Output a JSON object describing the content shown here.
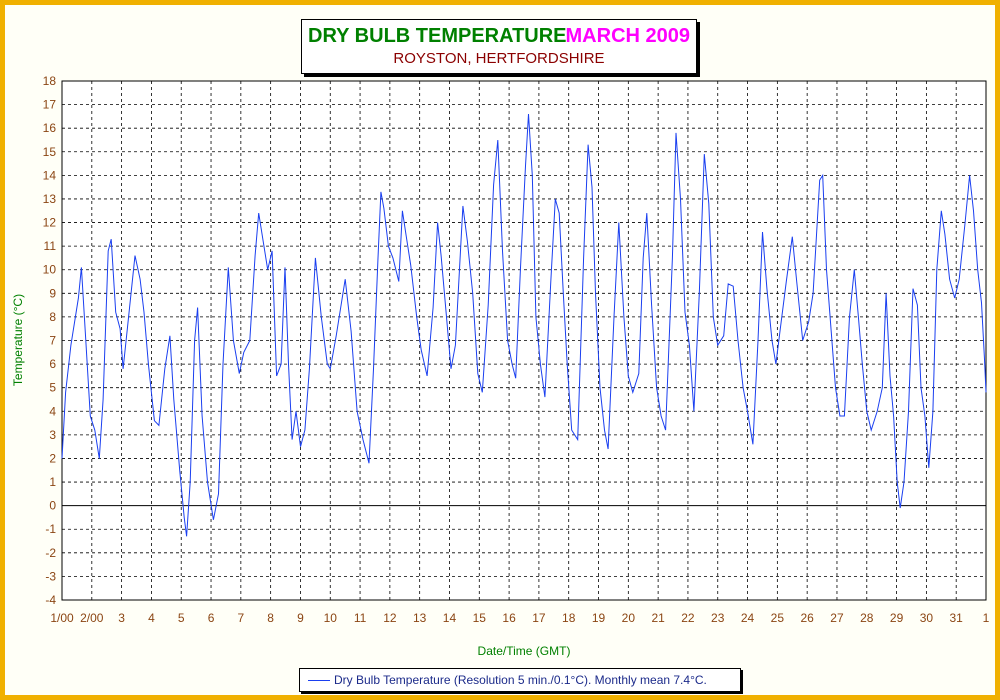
{
  "chart_data": {
    "type": "line",
    "title": "DRY BULB TEMPERATURE",
    "title_date": "MARCH 2009",
    "subtitle": "ROYSTON, HERTFORDSHIRE",
    "xlabel": "Date/Time (GMT)",
    "ylabel": "Temperature (°C)",
    "ylim": [
      -4,
      18
    ],
    "xlim": [
      1,
      32
    ],
    "yticks": [
      -4,
      -3,
      -2,
      -1,
      0,
      1,
      2,
      3,
      4,
      5,
      6,
      7,
      8,
      9,
      10,
      11,
      12,
      13,
      14,
      15,
      16,
      17,
      18
    ],
    "x_tick_labels": [
      "1/00",
      "2/00",
      "3",
      "4",
      "5",
      "6",
      "7",
      "8",
      "9",
      "10",
      "11",
      "12",
      "13",
      "14",
      "15",
      "16",
      "17",
      "18",
      "19",
      "20",
      "21",
      "22",
      "23",
      "24",
      "25",
      "26",
      "27",
      "28",
      "29",
      "30",
      "31",
      "1"
    ],
    "grid": true,
    "colors": {
      "line": "#1a3ff0",
      "axis_text": "#8b4513",
      "label_text": "#008000",
      "frame": "#f0b000"
    },
    "legend": "Dry Bulb Temperature (Resolution 5 min./0.1°C). Monthly mean 7.4°C.",
    "legend_position": "bottom-center",
    "series": [
      {
        "name": "Dry Bulb Temperature (Resolution 5 min./0.1°C). Monthly mean 7.4°C.",
        "points": [
          [
            1.0,
            2.0
          ],
          [
            1.12,
            4.8
          ],
          [
            1.3,
            6.8
          ],
          [
            1.55,
            8.8
          ],
          [
            1.65,
            10.1
          ],
          [
            1.8,
            7.0
          ],
          [
            1.95,
            3.8
          ],
          [
            2.1,
            3.2
          ],
          [
            2.25,
            2.0
          ],
          [
            2.38,
            4.5
          ],
          [
            2.55,
            10.8
          ],
          [
            2.65,
            11.3
          ],
          [
            2.8,
            8.2
          ],
          [
            2.95,
            7.5
          ],
          [
            3.05,
            5.8
          ],
          [
            3.2,
            7.6
          ],
          [
            3.45,
            10.6
          ],
          [
            3.62,
            9.6
          ],
          [
            3.75,
            8.2
          ],
          [
            3.9,
            6.0
          ],
          [
            4.1,
            3.6
          ],
          [
            4.25,
            3.4
          ],
          [
            4.45,
            5.8
          ],
          [
            4.62,
            7.2
          ],
          [
            4.75,
            4.5
          ],
          [
            4.95,
            1.5
          ],
          [
            5.1,
            -0.5
          ],
          [
            5.18,
            -1.3
          ],
          [
            5.3,
            1.0
          ],
          [
            5.45,
            7.0
          ],
          [
            5.55,
            8.4
          ],
          [
            5.7,
            3.8
          ],
          [
            5.88,
            1.0
          ],
          [
            6.08,
            -0.6
          ],
          [
            6.25,
            0.5
          ],
          [
            6.4,
            6.0
          ],
          [
            6.58,
            10.1
          ],
          [
            6.75,
            7.0
          ],
          [
            6.95,
            5.6
          ],
          [
            7.1,
            6.5
          ],
          [
            7.3,
            7.0
          ],
          [
            7.48,
            10.6
          ],
          [
            7.6,
            12.4
          ],
          [
            7.75,
            11.2
          ],
          [
            7.9,
            10.0
          ],
          [
            8.05,
            10.8
          ],
          [
            8.2,
            5.5
          ],
          [
            8.35,
            6.0
          ],
          [
            8.48,
            10.1
          ],
          [
            8.6,
            6.0
          ],
          [
            8.72,
            2.8
          ],
          [
            8.85,
            4.0
          ],
          [
            9.0,
            2.5
          ],
          [
            9.15,
            3.2
          ],
          [
            9.3,
            5.8
          ],
          [
            9.5,
            10.5
          ],
          [
            9.7,
            8.0
          ],
          [
            9.9,
            6.0
          ],
          [
            10.0,
            5.8
          ],
          [
            10.2,
            7.2
          ],
          [
            10.5,
            9.6
          ],
          [
            10.7,
            7.4
          ],
          [
            10.9,
            4.0
          ],
          [
            11.1,
            2.8
          ],
          [
            11.3,
            1.8
          ],
          [
            11.45,
            5.8
          ],
          [
            11.6,
            10.4
          ],
          [
            11.7,
            13.3
          ],
          [
            11.8,
            12.6
          ],
          [
            11.95,
            11.0
          ],
          [
            12.1,
            10.5
          ],
          [
            12.3,
            9.5
          ],
          [
            12.42,
            12.5
          ],
          [
            12.55,
            11.4
          ],
          [
            12.7,
            10.2
          ],
          [
            12.9,
            8.0
          ],
          [
            13.05,
            6.6
          ],
          [
            13.25,
            5.5
          ],
          [
            13.45,
            8.4
          ],
          [
            13.6,
            12.0
          ],
          [
            13.72,
            10.6
          ],
          [
            13.9,
            8.0
          ],
          [
            14.05,
            5.8
          ],
          [
            14.2,
            6.8
          ],
          [
            14.45,
            12.7
          ],
          [
            14.6,
            11.2
          ],
          [
            14.78,
            9.0
          ],
          [
            14.95,
            5.6
          ],
          [
            15.1,
            4.8
          ],
          [
            15.3,
            8.5
          ],
          [
            15.48,
            13.6
          ],
          [
            15.62,
            15.5
          ],
          [
            15.78,
            10.8
          ],
          [
            15.95,
            7.0
          ],
          [
            16.1,
            6.0
          ],
          [
            16.22,
            5.4
          ],
          [
            16.38,
            10.0
          ],
          [
            16.55,
            14.4
          ],
          [
            16.65,
            16.6
          ],
          [
            16.78,
            14.0
          ],
          [
            16.9,
            8.0
          ],
          [
            17.05,
            6.0
          ],
          [
            17.2,
            4.6
          ],
          [
            17.4,
            9.5
          ],
          [
            17.55,
            13.0
          ],
          [
            17.68,
            12.4
          ],
          [
            17.82,
            9.0
          ],
          [
            17.95,
            6.0
          ],
          [
            18.1,
            3.2
          ],
          [
            18.3,
            2.8
          ],
          [
            18.5,
            10.5
          ],
          [
            18.65,
            15.3
          ],
          [
            18.78,
            13.5
          ],
          [
            18.9,
            9.0
          ],
          [
            19.05,
            5.0
          ],
          [
            19.2,
            3.2
          ],
          [
            19.32,
            2.4
          ],
          [
            19.52,
            8.0
          ],
          [
            19.68,
            12.0
          ],
          [
            19.85,
            8.0
          ],
          [
            20.0,
            5.5
          ],
          [
            20.15,
            4.8
          ],
          [
            20.35,
            5.6
          ],
          [
            20.5,
            10.5
          ],
          [
            20.62,
            12.4
          ],
          [
            20.78,
            8.5
          ],
          [
            20.95,
            5.0
          ],
          [
            21.1,
            3.8
          ],
          [
            21.25,
            3.2
          ],
          [
            21.48,
            10.5
          ],
          [
            21.6,
            15.8
          ],
          [
            21.75,
            13.0
          ],
          [
            21.9,
            8.2
          ],
          [
            22.05,
            6.8
          ],
          [
            22.2,
            4.0
          ],
          [
            22.38,
            9.0
          ],
          [
            22.55,
            14.9
          ],
          [
            22.7,
            12.8
          ],
          [
            22.85,
            8.0
          ],
          [
            23.0,
            6.8
          ],
          [
            23.2,
            7.2
          ],
          [
            23.35,
            9.4
          ],
          [
            23.52,
            9.3
          ],
          [
            23.68,
            7.0
          ],
          [
            23.85,
            5.0
          ],
          [
            24.0,
            4.0
          ],
          [
            24.18,
            2.6
          ],
          [
            24.35,
            7.0
          ],
          [
            24.5,
            11.6
          ],
          [
            24.65,
            9.2
          ],
          [
            24.82,
            7.0
          ],
          [
            24.95,
            6.0
          ],
          [
            25.1,
            7.5
          ],
          [
            25.3,
            9.5
          ],
          [
            25.5,
            11.4
          ],
          [
            25.65,
            9.5
          ],
          [
            25.85,
            7.0
          ],
          [
            26.05,
            7.8
          ],
          [
            26.2,
            9.0
          ],
          [
            26.42,
            13.8
          ],
          [
            26.52,
            14.0
          ],
          [
            26.65,
            10.0
          ],
          [
            26.8,
            7.5
          ],
          [
            26.95,
            5.0
          ],
          [
            27.1,
            3.8
          ],
          [
            27.25,
            3.8
          ],
          [
            27.42,
            8.0
          ],
          [
            27.58,
            10.0
          ],
          [
            27.72,
            8.0
          ],
          [
            27.85,
            6.0
          ],
          [
            28.0,
            4.0
          ],
          [
            28.15,
            3.2
          ],
          [
            28.35,
            4.0
          ],
          [
            28.52,
            5.0
          ],
          [
            28.65,
            9.0
          ],
          [
            28.78,
            5.5
          ],
          [
            28.9,
            3.8
          ],
          [
            29.02,
            1.0
          ],
          [
            29.12,
            -0.1
          ],
          [
            29.25,
            1.0
          ],
          [
            29.4,
            4.0
          ],
          [
            29.55,
            9.2
          ],
          [
            29.7,
            8.5
          ],
          [
            29.82,
            5.0
          ],
          [
            29.95,
            3.8
          ],
          [
            30.08,
            1.6
          ],
          [
            30.22,
            4.0
          ],
          [
            30.35,
            10.0
          ],
          [
            30.5,
            12.5
          ],
          [
            30.62,
            11.5
          ],
          [
            30.78,
            9.6
          ],
          [
            30.95,
            8.8
          ],
          [
            31.1,
            9.6
          ],
          [
            31.3,
            12.0
          ],
          [
            31.45,
            14.0
          ],
          [
            31.58,
            12.5
          ],
          [
            31.72,
            10.0
          ],
          [
            31.85,
            8.6
          ],
          [
            31.95,
            6.2
          ],
          [
            32.0,
            4.8
          ]
        ]
      }
    ]
  }
}
